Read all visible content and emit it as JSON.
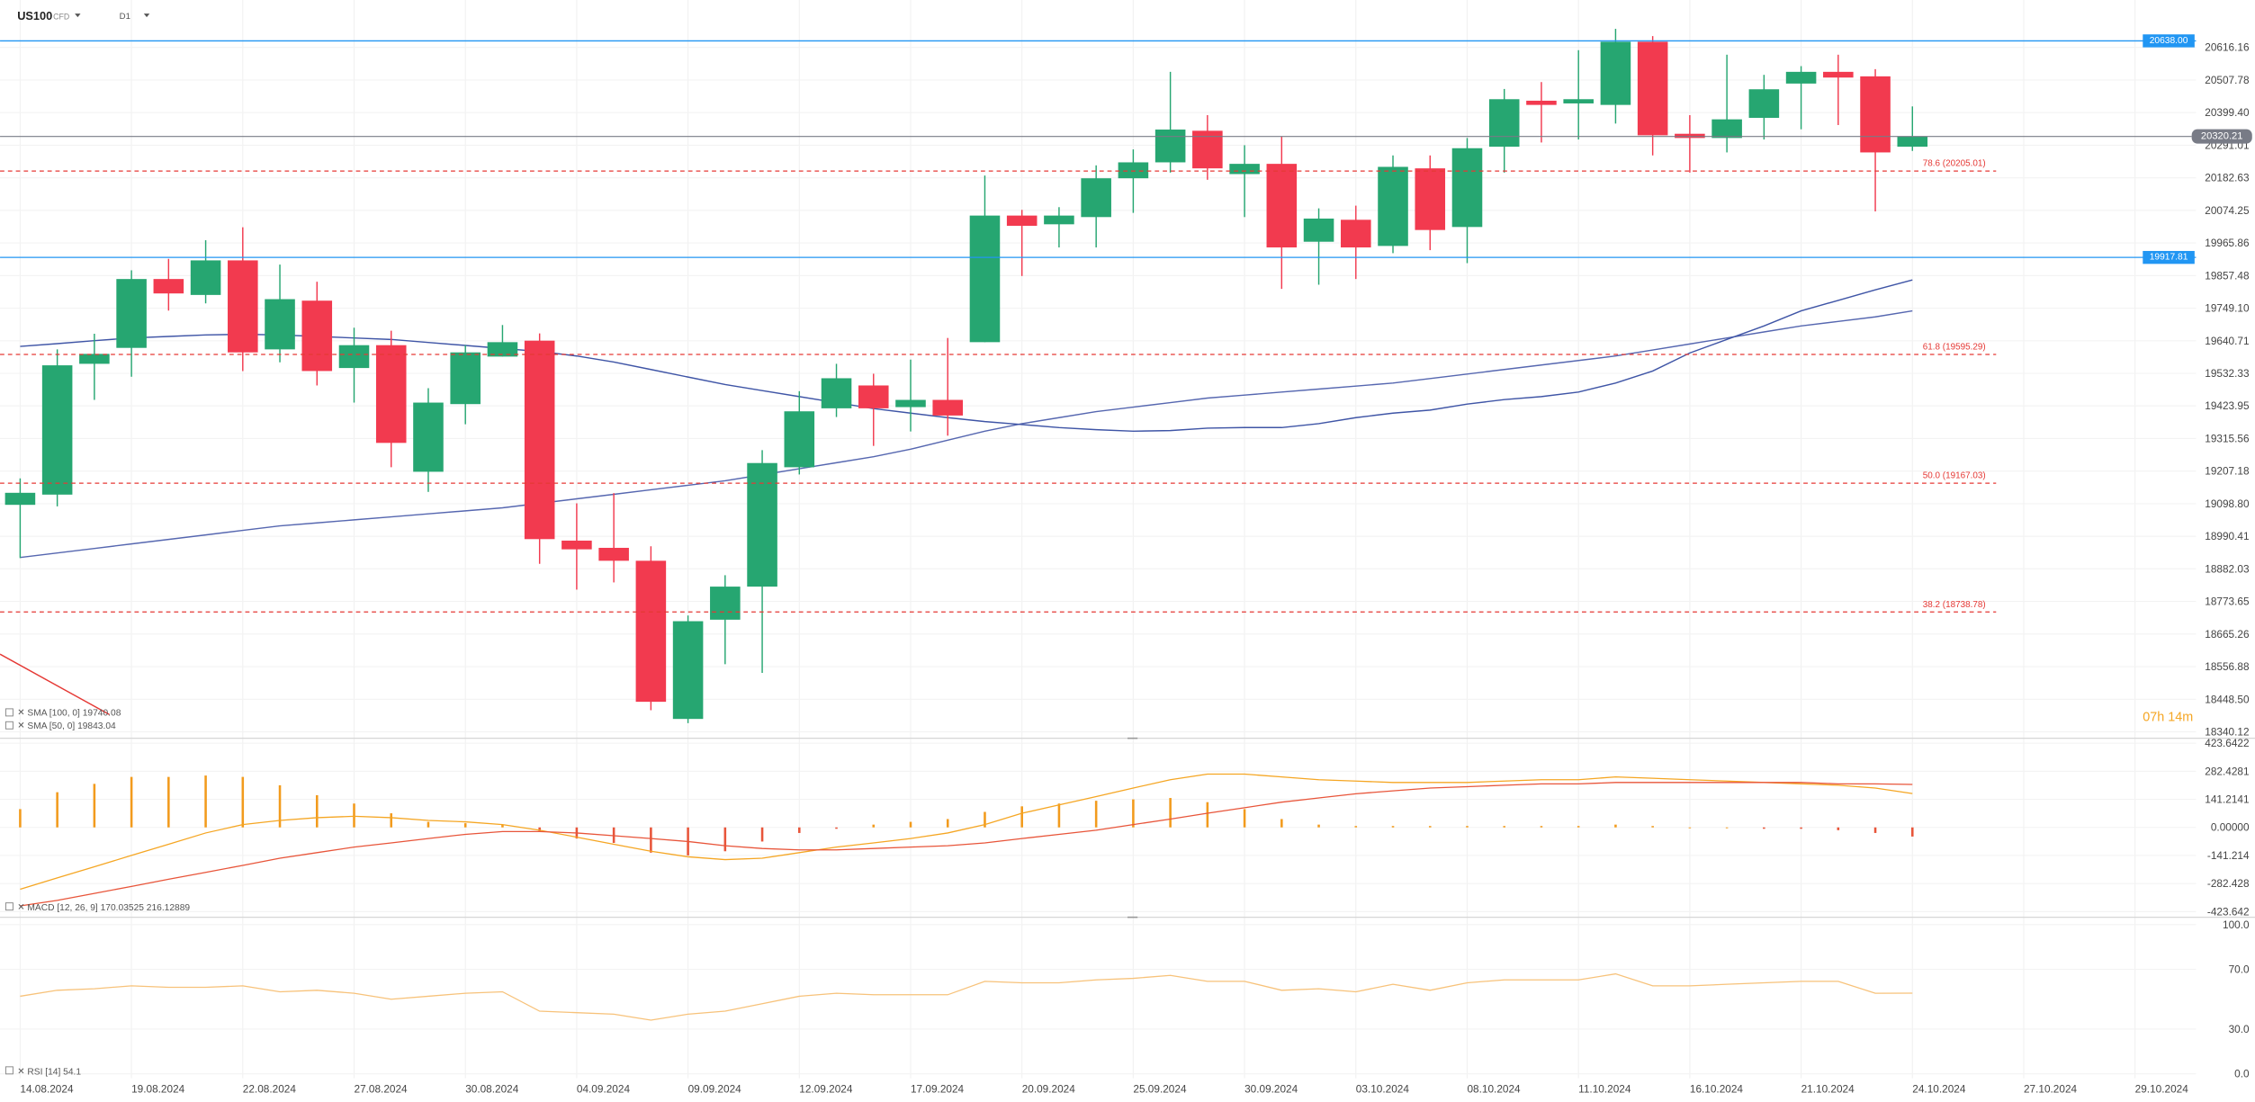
{
  "header": {
    "symbol": "US100",
    "instrument_type": "CFD",
    "timeframe": "D1",
    "countdown": "07h 14m"
  },
  "chart_data": [
    {
      "type": "candlestick",
      "categories": [
        "14.08.2024",
        null,
        null,
        "19.08.2024",
        null,
        null,
        "22.08.2024",
        null,
        null,
        "27.08.2024",
        null,
        null,
        "30.08.2024",
        null,
        null,
        "04.09.2024",
        null,
        null,
        "09.09.2024",
        null,
        null,
        "12.09.2024",
        null,
        null,
        "17.09.2024",
        null,
        null,
        "20.09.2024",
        null,
        null,
        "25.09.2024",
        null,
        null,
        "30.09.2024",
        null,
        null,
        "03.10.2024",
        null,
        null,
        "08.10.2024",
        null,
        null,
        "11.10.2024",
        null,
        null,
        "16.10.2024",
        null,
        null,
        "21.10.2024",
        null,
        null,
        "24.10.2024",
        null,
        null,
        "27.10.2024",
        null,
        null,
        "29.10.2024"
      ],
      "open": [
        19095,
        19129,
        19564,
        19617,
        19846,
        19793,
        19908,
        19612,
        19774,
        19550,
        19626,
        19205,
        19430,
        19588,
        19641,
        18976,
        18952,
        18909,
        18383,
        18713,
        18823,
        19220,
        19416,
        19492,
        19420,
        19444,
        19636,
        20057,
        20028,
        20052,
        20181,
        20234,
        20339,
        20195,
        20229,
        19970,
        20043,
        19956,
        20214,
        20019,
        20286,
        20439,
        20430,
        20425,
        20635,
        20329,
        20315,
        20382,
        20496,
        20535,
        20520,
        20286,
        null,
        null,
        null,
        null,
        null,
        null
      ],
      "high": [
        19183,
        19612,
        19664,
        19875,
        19913,
        19975,
        20018,
        19894,
        19837,
        19684,
        19674,
        19483,
        19626,
        19693,
        19665,
        19100,
        19134,
        18957,
        18727,
        18861,
        19277,
        19473,
        19564,
        19531,
        19578,
        19650,
        20190,
        20076,
        20085,
        20224,
        20277,
        20535,
        20391,
        20291,
        20320,
        20081,
        20090,
        20257,
        20257,
        20315,
        20478,
        20501,
        20607,
        20678,
        20654,
        20391,
        20592,
        20525,
        20554,
        20592,
        20544,
        20420,
        null,
        null,
        null,
        null,
        null,
        null
      ],
      "low": [
        18918,
        19090,
        19444,
        19521,
        19741,
        19765,
        19540,
        19569,
        19492,
        19435,
        19220,
        19138,
        19363,
        19588,
        18899,
        18813,
        18837,
        18412,
        18369,
        18565,
        18536,
        19196,
        19387,
        19291,
        19339,
        19325,
        19636,
        19856,
        19951,
        19951,
        20066,
        20200,
        20176,
        20052,
        19813,
        19827,
        19846,
        19932,
        19942,
        19899,
        20200,
        20300,
        20310,
        20363,
        20257,
        20200,
        20267,
        20310,
        20344,
        20358,
        20071,
        20272,
        null,
        null,
        null,
        null,
        null,
        null
      ],
      "close": [
        19135,
        19559,
        19597,
        19846,
        19798,
        19908,
        19602,
        19779,
        19540,
        19626,
        19301,
        19435,
        19602,
        19636,
        18981,
        18947,
        18909,
        18440,
        18708,
        18823,
        19234,
        19406,
        19516,
        19416,
        19444,
        19392,
        20057,
        20023,
        20057,
        20181,
        20234,
        20343,
        20214,
        20229,
        19951,
        20047,
        19951,
        20219,
        20009,
        20281,
        20444,
        20425,
        20444,
        20635,
        20324,
        20315,
        20377,
        20477,
        20535,
        20516,
        20267,
        20320.21,
        null,
        null,
        null,
        null,
        null,
        null
      ],
      "up_color": "#26a671",
      "down_color": "#f23a4f",
      "series": [
        {
          "name": "SMA [100, 0]",
          "color": "#5667b0",
          "values": [
            18920,
            18935,
            18950,
            18965,
            18980,
            18995,
            19010,
            19025,
            19035,
            19045,
            19055,
            19065,
            19075,
            19085,
            19100,
            19115,
            19130,
            19145,
            19160,
            19175,
            19195,
            19215,
            19235,
            19255,
            19280,
            19310,
            19340,
            19365,
            19385,
            19405,
            19420,
            19435,
            19450,
            19460,
            19470,
            19480,
            19490,
            19500,
            19515,
            19530,
            19545,
            19560,
            19575,
            19590,
            19610,
            19630,
            19650,
            19670,
            19690,
            19705,
            19720,
            19740.08,
            null,
            null,
            null,
            null,
            null,
            null
          ]
        },
        {
          "name": "SMA [50, 0]",
          "color": "#3f55a6",
          "values": [
            19622,
            19631,
            19641,
            19650,
            19655,
            19660,
            19662,
            19660,
            19655,
            19650,
            19645,
            19635,
            19625,
            19615,
            19605,
            19590,
            19570,
            19545,
            19520,
            19495,
            19475,
            19455,
            19435,
            19415,
            19400,
            19385,
            19372,
            19362,
            19352,
            19345,
            19340,
            19342,
            19350,
            19352,
            19352,
            19365,
            19385,
            19400,
            19410,
            19430,
            19445,
            19455,
            19470,
            19500,
            19540,
            19600,
            19645,
            19690,
            19740,
            19775,
            19810,
            19843.04,
            null,
            null,
            null,
            null,
            null,
            null
          ]
        }
      ],
      "ylim": [
        18321.1,
        20773.9
      ],
      "yticks": [
        20616.16,
        20507.78,
        {
          "value": 20399.4,
          "label": "20399.40"
        },
        20291.01,
        20182.63,
        20074.25,
        19965.86,
        19857.48,
        {
          "value": 19749.1,
          "label": "19749.10"
        },
        19640.71,
        19532.33,
        19423.95,
        19315.56,
        19207.18,
        {
          "value": 19098.8,
          "label": "19098.80"
        },
        18990.41,
        18882.03,
        18773.65,
        18665.26,
        18556.88,
        {
          "value": 18448.5,
          "label": "18448.50"
        },
        18340.12
      ],
      "grid": true,
      "hlines": [
        {
          "value": 20638,
          "label": "20638.00",
          "color": "#2196f3"
        },
        {
          "value": 19917.81,
          "label": "19917.81",
          "color": "#2196f3"
        }
      ],
      "last_price": 20320.21,
      "last_price_color": "#787b86",
      "fib_levels": [
        {
          "value": 20205.01,
          "label": "78.6 (20205.01)"
        },
        {
          "value": 19595.29,
          "label": "61.8 (19595.29)"
        },
        {
          "value": 19167.03,
          "label": "50.0 (19167.03)"
        },
        {
          "value": 18738.78,
          "label": "38.2 (18738.78)"
        }
      ],
      "fib_color": "#e53935"
    },
    {
      "type": "macd",
      "name": "MACD [12, 26, 9]",
      "series": [
        {
          "color": "#f5a623",
          "values": [
            -311,
            -254,
            -198,
            -141,
            -85,
            -28,
            14,
            35,
            49,
            56,
            49,
            35,
            28,
            14,
            -14,
            -49,
            -85,
            -120,
            -148,
            -162,
            -155,
            -127,
            -99,
            -78,
            -56,
            -28,
            14,
            71,
            113,
            155,
            198,
            240,
            268,
            268,
            254,
            240,
            233,
            226,
            226,
            226,
            233,
            240,
            240,
            254,
            247,
            240,
            233,
            226,
            219,
            212,
            198,
            170.03525,
            null,
            null,
            null,
            null,
            null,
            null
          ]
        },
        {
          "color": "#e8553a",
          "values": [
            -395,
            -367,
            -332,
            -297,
            -261,
            -226,
            -191,
            -155,
            -127,
            -99,
            -78,
            -56,
            -35,
            -21,
            -21,
            -28,
            -42,
            -56,
            -71,
            -92,
            -106,
            -113,
            -113,
            -106,
            -99,
            -92,
            -78,
            -56,
            -35,
            -14,
            14,
            42,
            71,
            99,
            127,
            148,
            169,
            184,
            198,
            205,
            212,
            219,
            219,
            226,
            226,
            226,
            226,
            226,
            226,
            219,
            219,
            216.12889,
            null,
            null,
            null,
            null,
            null,
            null
          ]
        }
      ],
      "histogram": [
        92,
        177,
        219,
        254,
        254,
        261,
        254,
        212,
        162,
        120,
        71,
        28,
        21,
        14,
        -21,
        -56,
        -78,
        -127,
        -141,
        -120,
        -71,
        -28,
        -7,
        14,
        28,
        42,
        78,
        106,
        120,
        134,
        141,
        148,
        127,
        92,
        42,
        14,
        7,
        7,
        7,
        7,
        7,
        7,
        7,
        14,
        7,
        0,
        0,
        -7,
        -7,
        -14,
        -28,
        -46,
        null,
        null,
        null,
        null,
        null,
        null
      ],
      "histogram_up_color": "#f29b1d",
      "histogram_down_color": "#e8553a",
      "ylim": [
        -444.8,
        444.8
      ],
      "yticks": [
        423.6422,
        282.4281,
        141.2141,
        {
          "value": 0,
          "label": "0.00000"
        },
        -141.214,
        -282.428,
        -423.642
      ]
    },
    {
      "type": "line",
      "name": "RSI [14]",
      "series": [
        {
          "color": "#f7c27a",
          "values": [
            52,
            56,
            57,
            59,
            58,
            58,
            59,
            55,
            56,
            54,
            50,
            52,
            54,
            55,
            42,
            41,
            40,
            36,
            40,
            42,
            47,
            52,
            54,
            53,
            53,
            53,
            62,
            61,
            61,
            63,
            64,
            66,
            62,
            62,
            56,
            57,
            55,
            60,
            56,
            61,
            63,
            63,
            63,
            67,
            59,
            59,
            60,
            61,
            62,
            62,
            54,
            54.1,
            null,
            null,
            null,
            null,
            null,
            null
          ]
        }
      ],
      "ylim": [
        -3,
        104
      ],
      "yticks": [
        {
          "value": 100,
          "label": "100.0"
        },
        {
          "value": 70,
          "label": "70.0"
        },
        {
          "value": 30,
          "label": "30.0"
        },
        {
          "value": 0,
          "label": "0.0"
        }
      ]
    }
  ]
}
